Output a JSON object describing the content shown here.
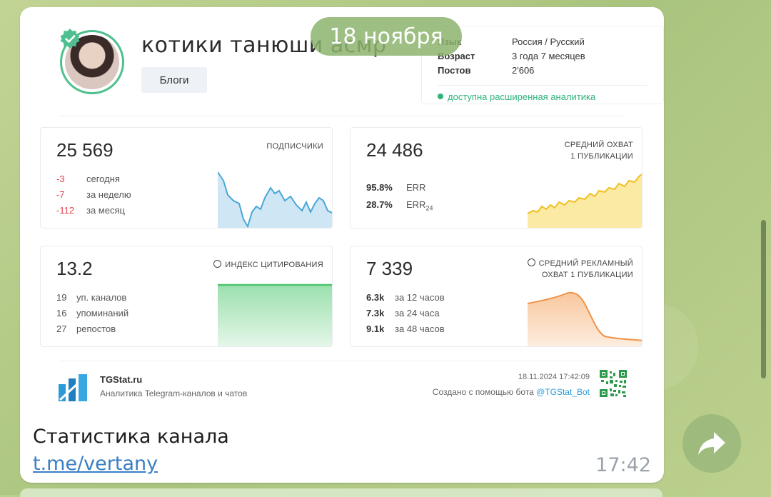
{
  "date_separator": "18 ноября",
  "channel": {
    "name": "котики танюши асмр",
    "category": "Блоги"
  },
  "meta": {
    "rows": [
      {
        "key": "Язык",
        "value": "Россия / Русский"
      },
      {
        "key": "Возраст",
        "value": "3 года 7 месяцев"
      },
      {
        "key": "Постов",
        "value": "2'606"
      }
    ],
    "extended": "доступна расширенная аналитика"
  },
  "tiles": {
    "subscribers": {
      "value": "25 569",
      "title": "подписчики",
      "rows": [
        {
          "n": "-3",
          "label": "сегодня"
        },
        {
          "n": "-7",
          "label": "за неделю"
        },
        {
          "n": "-112",
          "label": "за месяц"
        }
      ],
      "color": "#4aa6d6"
    },
    "reach": {
      "value": "24 486",
      "title1": "средний охват",
      "title2": "1 публикации",
      "rows": [
        {
          "n": "95.8%",
          "label": "ERR"
        },
        {
          "n": "28.7%",
          "label": "ERR",
          "sub": "24"
        }
      ],
      "color": "#f0c020"
    },
    "citation": {
      "value": "13.2",
      "title": "индекс цитирования",
      "rows": [
        {
          "n": "19",
          "label": "уп. каналов"
        },
        {
          "n": "16",
          "label": "упоминаний"
        },
        {
          "n": "27",
          "label": "репостов"
        }
      ],
      "color": "#4cc36b"
    },
    "ad_reach": {
      "value": "7 339",
      "title1": "средний рекламный",
      "title2": "охват 1 публикации",
      "rows": [
        {
          "n": "6.3k",
          "label": "за 12 часов"
        },
        {
          "n": "7.3k",
          "label": "за 24 часа"
        },
        {
          "n": "9.1k",
          "label": "за 48 часов"
        }
      ],
      "color": "#f0934a"
    }
  },
  "footer": {
    "brand": "TGStat.ru",
    "tagline": "Аналитика Telegram-каналов и чатов",
    "datetime": "18.11.2024 17:42:09",
    "made_with": "Создано с помощью бота",
    "bot": "@TGStat_Bot"
  },
  "message": {
    "caption": "Статистика канала",
    "link": "t.me/vertany",
    "time": "17:42"
  }
}
